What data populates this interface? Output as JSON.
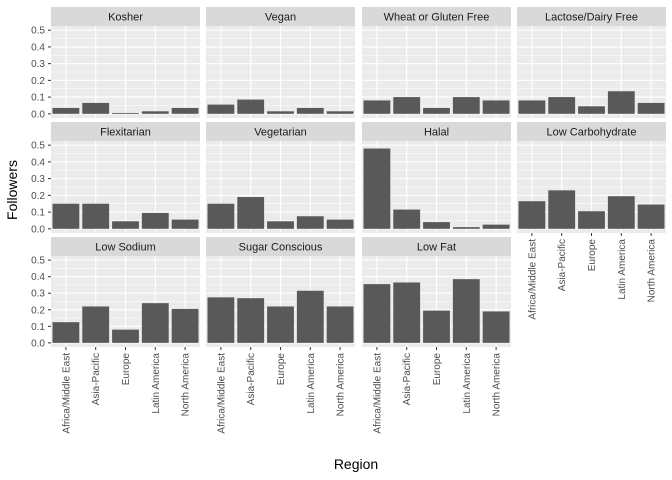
{
  "chart_data": {
    "type": "bar",
    "layout": "facet_wrap",
    "xlabel": "Region",
    "ylabel": "Followers",
    "ylim": [
      0,
      0.5
    ],
    "yticks": [
      "0.0",
      "0.1",
      "0.2",
      "0.3",
      "0.4",
      "0.5"
    ],
    "categories": [
      "Africa/Middle East",
      "Asia-Pacific",
      "Europe",
      "Latin America",
      "North America"
    ],
    "grid": true,
    "colors": {
      "panel_bg": "#ebebeb",
      "strip_bg": "#d9d9d9",
      "bar": "#595959",
      "grid_major": "#ffffff"
    },
    "facets": [
      {
        "name": "Kosher",
        "values": [
          0.035,
          0.065,
          0.005,
          0.015,
          0.035
        ]
      },
      {
        "name": "Vegan",
        "values": [
          0.055,
          0.085,
          0.015,
          0.035,
          0.015
        ]
      },
      {
        "name": "Wheat or Gluten Free",
        "values": [
          0.08,
          0.1,
          0.035,
          0.1,
          0.08
        ]
      },
      {
        "name": "Lactose/Dairy Free",
        "values": [
          0.08,
          0.1,
          0.045,
          0.135,
          0.065
        ]
      },
      {
        "name": "Flexitarian",
        "values": [
          0.15,
          0.15,
          0.045,
          0.095,
          0.055
        ]
      },
      {
        "name": "Vegetarian",
        "values": [
          0.15,
          0.19,
          0.045,
          0.075,
          0.055
        ]
      },
      {
        "name": "Halal",
        "values": [
          0.48,
          0.115,
          0.04,
          0.01,
          0.025
        ]
      },
      {
        "name": "Low Carbohydrate",
        "values": [
          0.165,
          0.23,
          0.105,
          0.195,
          0.145
        ]
      },
      {
        "name": "Low Sodium",
        "values": [
          0.125,
          0.22,
          0.08,
          0.24,
          0.205
        ]
      },
      {
        "name": "Sugar Conscious",
        "values": [
          0.275,
          0.27,
          0.22,
          0.315,
          0.22
        ]
      },
      {
        "name": "Low Fat",
        "values": [
          0.355,
          0.365,
          0.195,
          0.385,
          0.19
        ]
      }
    ]
  }
}
